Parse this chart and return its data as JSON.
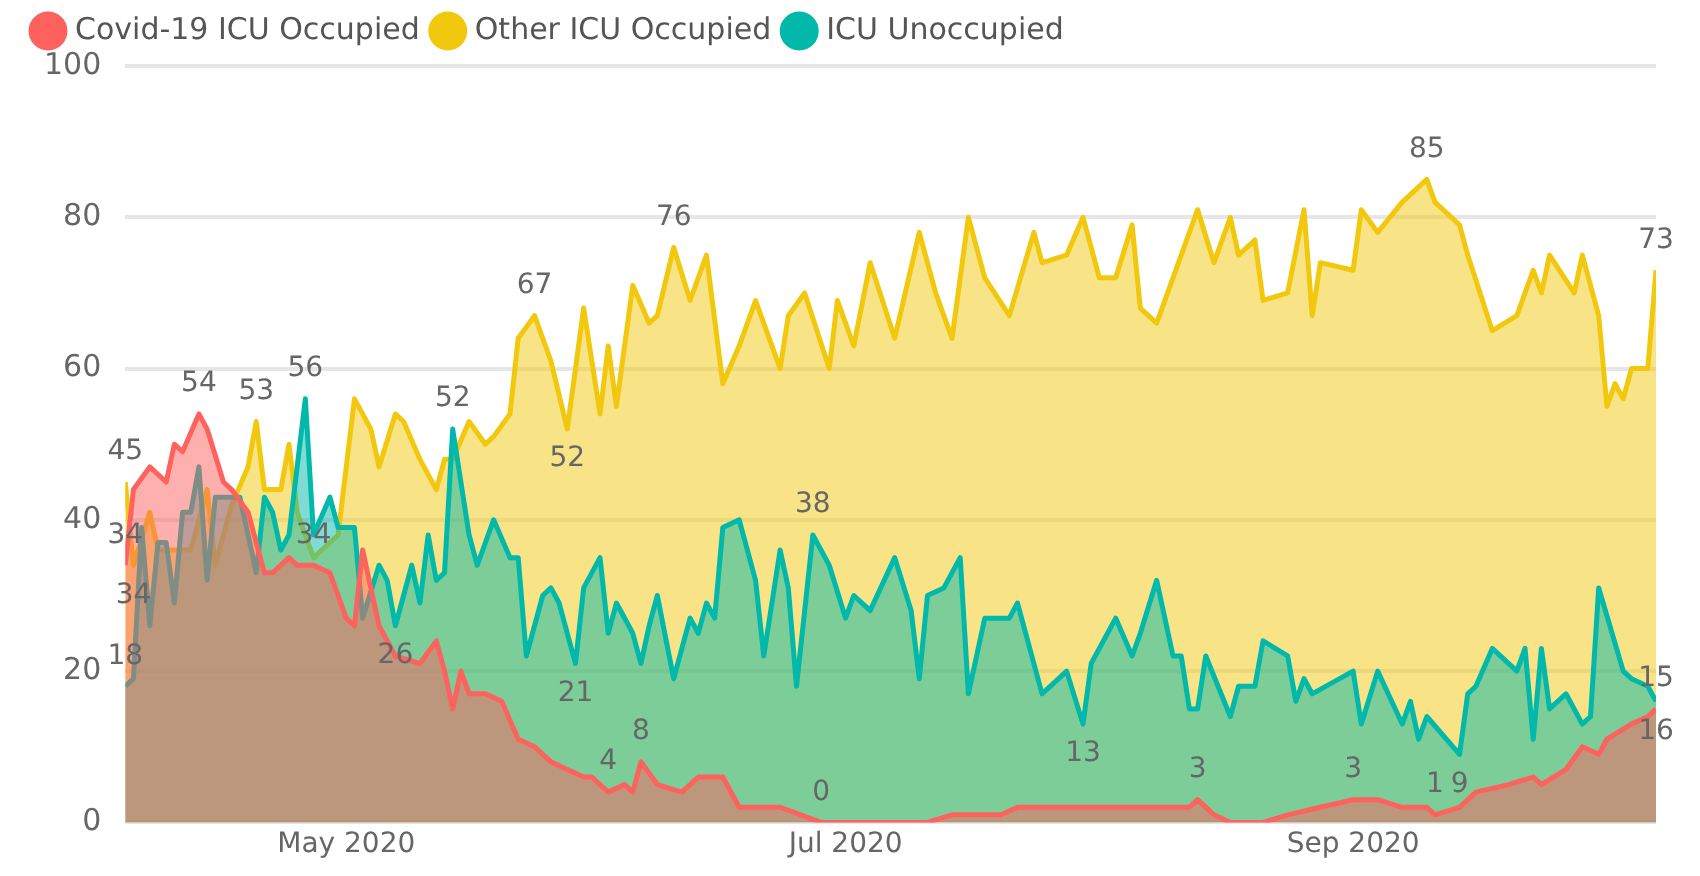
{
  "chart_data": {
    "type": "area",
    "legend": "top left",
    "grid": "y",
    "marker": "none",
    "line_style": "solid",
    "xlim": [
      "2020-04-04",
      "2020-10-08"
    ],
    "xticks": [
      {
        "value": "2020-05-01",
        "label": "May 2020"
      },
      {
        "value": "2020-07-01",
        "label": "Jul 2020"
      },
      {
        "value": "2020-09-01",
        "label": "Sep 2020"
      }
    ],
    "ylim": [
      0,
      100
    ],
    "yticks": [
      0,
      20,
      40,
      60,
      80,
      100
    ],
    "series": [
      {
        "name": "Covid-19 ICU Occupied",
        "color": "#fd625e",
        "x": [
          "2020-04-04",
          "2020-04-05",
          "2020-04-07",
          "2020-04-09",
          "2020-04-10",
          "2020-04-11",
          "2020-04-13",
          "2020-04-14",
          "2020-04-16",
          "2020-04-17",
          "2020-04-19",
          "2020-04-21",
          "2020-04-22",
          "2020-04-24",
          "2020-04-25",
          "2020-04-27",
          "2020-04-29",
          "2020-04-30",
          "2020-05-01",
          "2020-05-02",
          "2020-05-03",
          "2020-05-05",
          "2020-05-06",
          "2020-05-07",
          "2020-05-10",
          "2020-05-12",
          "2020-05-13",
          "2020-05-14",
          "2020-05-15",
          "2020-05-16",
          "2020-05-18",
          "2020-05-20",
          "2020-05-22",
          "2020-05-24",
          "2020-05-26",
          "2020-05-28",
          "2020-05-30",
          "2020-05-31",
          "2020-06-02",
          "2020-06-04",
          "2020-06-05",
          "2020-06-06",
          "2020-06-08",
          "2020-06-11",
          "2020-06-13",
          "2020-06-16",
          "2020-06-18",
          "2020-06-23",
          "2020-06-28",
          "2020-07-11",
          "2020-07-14",
          "2020-07-20",
          "2020-07-22",
          "2020-07-31",
          "2020-08-12",
          "2020-08-13",
          "2020-08-15",
          "2020-08-17",
          "2020-08-21",
          "2020-08-24",
          "2020-08-28",
          "2020-09-01",
          "2020-09-04",
          "2020-09-07",
          "2020-09-10",
          "2020-09-11",
          "2020-09-14",
          "2020-09-16",
          "2020-09-20",
          "2020-09-23",
          "2020-09-24",
          "2020-09-27",
          "2020-09-29",
          "2020-10-01",
          "2020-10-02",
          "2020-10-05",
          "2020-10-07",
          "2020-10-08"
        ],
        "values": [
          34,
          44,
          47,
          45,
          50,
          49,
          54,
          52,
          45,
          44,
          41,
          33,
          33,
          35,
          34,
          34,
          33,
          30,
          27,
          26,
          36,
          26,
          24,
          22,
          21,
          24,
          20,
          15,
          20,
          17,
          17,
          16,
          11,
          10,
          8,
          7,
          6,
          6,
          4,
          5,
          4,
          8,
          5,
          4,
          6,
          6,
          2,
          2,
          0,
          0,
          1,
          1,
          2,
          2,
          2,
          3,
          1,
          0,
          0,
          1,
          2,
          3,
          3,
          2,
          2,
          1,
          2,
          4,
          5,
          6,
          5,
          7,
          10,
          9,
          11,
          13,
          14,
          15
        ],
        "value_labels": [
          "34",
          null,
          null,
          null,
          null,
          null,
          "54",
          null,
          null,
          null,
          null,
          null,
          null,
          null,
          null,
          "34",
          null,
          null,
          null,
          null,
          null,
          null,
          null,
          null,
          null,
          null,
          null,
          null,
          null,
          null,
          null,
          null,
          null,
          null,
          null,
          null,
          null,
          null,
          "4",
          null,
          null,
          "8",
          null,
          null,
          null,
          null,
          null,
          null,
          "0",
          null,
          null,
          null,
          null,
          null,
          null,
          "3",
          null,
          null,
          null,
          null,
          null,
          "3",
          null,
          null,
          null,
          "1",
          null,
          null,
          null,
          null,
          null,
          null,
          null,
          null,
          null,
          null,
          null,
          "15"
        ]
      },
      {
        "name": "Other ICU Occupied",
        "color": "#f2c80f",
        "x": [
          "2020-04-04",
          "2020-04-05",
          "2020-04-07",
          "2020-04-08",
          "2020-04-10",
          "2020-04-12",
          "2020-04-14",
          "2020-04-15",
          "2020-04-17",
          "2020-04-19",
          "2020-04-20",
          "2020-04-21",
          "2020-04-23",
          "2020-04-24",
          "2020-04-25",
          "2020-04-27",
          "2020-04-30",
          "2020-05-02",
          "2020-05-04",
          "2020-05-05",
          "2020-05-07",
          "2020-05-08",
          "2020-05-10",
          "2020-05-12",
          "2020-05-13",
          "2020-05-14",
          "2020-05-16",
          "2020-05-18",
          "2020-05-19",
          "2020-05-21",
          "2020-05-22",
          "2020-05-24",
          "2020-05-26",
          "2020-05-28",
          "2020-05-30",
          "2020-06-01",
          "2020-06-02",
          "2020-06-03",
          "2020-06-05",
          "2020-06-07",
          "2020-06-08",
          "2020-06-10",
          "2020-06-12",
          "2020-06-14",
          "2020-06-16",
          "2020-06-18",
          "2020-06-20",
          "2020-06-23",
          "2020-06-24",
          "2020-06-26",
          "2020-06-29",
          "2020-06-30",
          "2020-07-02",
          "2020-07-04",
          "2020-07-07",
          "2020-07-10",
          "2020-07-12",
          "2020-07-14",
          "2020-07-16",
          "2020-07-18",
          "2020-07-21",
          "2020-07-24",
          "2020-07-25",
          "2020-07-28",
          "2020-07-30",
          "2020-08-01",
          "2020-08-03",
          "2020-08-05",
          "2020-08-06",
          "2020-08-08",
          "2020-08-10",
          "2020-08-13",
          "2020-08-15",
          "2020-08-17",
          "2020-08-18",
          "2020-08-20",
          "2020-08-21",
          "2020-08-24",
          "2020-08-26",
          "2020-08-27",
          "2020-08-28",
          "2020-09-01",
          "2020-09-02",
          "2020-09-04",
          "2020-09-07",
          "2020-09-10",
          "2020-09-11",
          "2020-09-14",
          "2020-09-15",
          "2020-09-18",
          "2020-09-21",
          "2020-09-23",
          "2020-09-24",
          "2020-09-25",
          "2020-09-28",
          "2020-09-29",
          "2020-10-01",
          "2020-10-02",
          "2020-10-03",
          "2020-10-04",
          "2020-10-05",
          "2020-10-07",
          "2020-10-08"
        ],
        "values": [
          45,
          34,
          41,
          36,
          36,
          36,
          44,
          34,
          42,
          47,
          53,
          44,
          44,
          50,
          41,
          35,
          38,
          56,
          52,
          47,
          54,
          53,
          48,
          44,
          48,
          48,
          53,
          50,
          51,
          54,
          64,
          67,
          61,
          52,
          68,
          54,
          63,
          55,
          71,
          66,
          67,
          76,
          69,
          75,
          58,
          63,
          69,
          60,
          67,
          70,
          60,
          69,
          63,
          74,
          64,
          78,
          70,
          64,
          80,
          72,
          67,
          78,
          74,
          75,
          80,
          72,
          72,
          79,
          68,
          66,
          72,
          81,
          74,
          80,
          75,
          77,
          69,
          70,
          81,
          67,
          74,
          73,
          81,
          78,
          82,
          85,
          82,
          79,
          75,
          65,
          67,
          73,
          70,
          75,
          70,
          75,
          67,
          55,
          58,
          56,
          60,
          60,
          73
        ],
        "value_labels": [
          "45",
          "34",
          null,
          null,
          null,
          null,
          null,
          null,
          null,
          null,
          "53",
          null,
          null,
          null,
          null,
          null,
          null,
          null,
          null,
          null,
          null,
          null,
          null,
          null,
          null,
          null,
          null,
          null,
          null,
          null,
          null,
          "67",
          null,
          "52",
          null,
          null,
          null,
          null,
          null,
          null,
          null,
          "76",
          null,
          null,
          null,
          null,
          null,
          null,
          null,
          null,
          null,
          null,
          null,
          null,
          null,
          null,
          null,
          null,
          null,
          null,
          null,
          null,
          null,
          null,
          null,
          null,
          null,
          null,
          null,
          null,
          null,
          null,
          null,
          null,
          null,
          null,
          null,
          null,
          null,
          null,
          null,
          null,
          null,
          null,
          null,
          "85",
          null,
          null,
          null,
          null,
          null,
          null,
          null,
          null,
          null,
          null,
          null,
          null,
          null,
          null,
          null,
          null,
          "73"
        ]
      },
      {
        "name": "ICU Unoccupied",
        "color": "#01b8aa",
        "x": [
          "2020-04-04",
          "2020-04-05",
          "2020-04-06",
          "2020-04-07",
          "2020-04-08",
          "2020-04-09",
          "2020-04-10",
          "2020-04-11",
          "2020-04-12",
          "2020-04-13",
          "2020-04-14",
          "2020-04-15",
          "2020-04-16",
          "2020-04-18",
          "2020-04-20",
          "2020-04-21",
          "2020-04-22",
          "2020-04-23",
          "2020-04-24",
          "2020-04-26",
          "2020-04-27",
          "2020-04-29",
          "2020-04-30",
          "2020-05-02",
          "2020-05-03",
          "2020-05-05",
          "2020-05-06",
          "2020-05-07",
          "2020-05-09",
          "2020-05-10",
          "2020-05-11",
          "2020-05-12",
          "2020-05-13",
          "2020-05-14",
          "2020-05-16",
          "2020-05-17",
          "2020-05-19",
          "2020-05-21",
          "2020-05-22",
          "2020-05-23",
          "2020-05-25",
          "2020-05-26",
          "2020-05-27",
          "2020-05-29",
          "2020-05-30",
          "2020-06-01",
          "2020-06-02",
          "2020-06-03",
          "2020-06-05",
          "2020-06-06",
          "2020-06-07",
          "2020-06-08",
          "2020-06-10",
          "2020-06-12",
          "2020-06-13",
          "2020-06-14",
          "2020-06-15",
          "2020-06-16",
          "2020-06-18",
          "2020-06-20",
          "2020-06-21",
          "2020-06-23",
          "2020-06-24",
          "2020-06-25",
          "2020-06-27",
          "2020-06-29",
          "2020-07-01",
          "2020-07-02",
          "2020-07-04",
          "2020-07-07",
          "2020-07-09",
          "2020-07-10",
          "2020-07-11",
          "2020-07-13",
          "2020-07-15",
          "2020-07-16",
          "2020-07-18",
          "2020-07-21",
          "2020-07-22",
          "2020-07-25",
          "2020-07-28",
          "2020-07-30",
          "2020-07-31",
          "2020-08-03",
          "2020-08-05",
          "2020-08-06",
          "2020-08-08",
          "2020-08-10",
          "2020-08-11",
          "2020-08-12",
          "2020-08-13",
          "2020-08-14",
          "2020-08-17",
          "2020-08-18",
          "2020-08-20",
          "2020-08-21",
          "2020-08-24",
          "2020-08-25",
          "2020-08-26",
          "2020-08-27",
          "2020-09-01",
          "2020-09-02",
          "2020-09-04",
          "2020-09-07",
          "2020-09-08",
          "2020-09-09",
          "2020-09-10",
          "2020-09-14",
          "2020-09-15",
          "2020-09-16",
          "2020-09-18",
          "2020-09-21",
          "2020-09-22",
          "2020-09-23",
          "2020-09-24",
          "2020-09-25",
          "2020-09-27",
          "2020-09-29",
          "2020-09-30",
          "2020-10-01",
          "2020-10-04",
          "2020-10-05",
          "2020-10-07",
          "2020-10-08"
        ],
        "values": [
          18,
          19,
          39,
          26,
          37,
          37,
          29,
          41,
          41,
          47,
          32,
          43,
          43,
          43,
          33,
          43,
          41,
          36,
          38,
          56,
          38,
          43,
          39,
          39,
          27,
          34,
          32,
          26,
          34,
          29,
          38,
          32,
          33,
          52,
          38,
          34,
          40,
          35,
          35,
          22,
          30,
          31,
          29,
          21,
          31,
          35,
          25,
          29,
          25,
          21,
          26,
          30,
          19,
          27,
          25,
          29,
          27,
          39,
          40,
          32,
          22,
          36,
          31,
          18,
          38,
          34,
          27,
          30,
          28,
          35,
          28,
          19,
          30,
          31,
          35,
          17,
          27,
          27,
          29,
          17,
          20,
          13,
          21,
          27,
          22,
          25,
          32,
          22,
          22,
          15,
          15,
          22,
          14,
          18,
          18,
          24,
          22,
          16,
          19,
          17,
          20,
          13,
          20,
          13,
          16,
          11,
          14,
          9,
          17,
          18,
          23,
          20,
          23,
          11,
          23,
          15,
          17,
          13,
          14,
          31,
          20,
          19,
          18,
          16
        ],
        "value_labels": [
          "18",
          null,
          null,
          null,
          null,
          null,
          null,
          null,
          null,
          null,
          null,
          null,
          null,
          null,
          null,
          null,
          null,
          null,
          null,
          "56",
          null,
          null,
          null,
          null,
          null,
          null,
          null,
          "26",
          null,
          null,
          null,
          null,
          null,
          "52",
          null,
          null,
          null,
          null,
          null,
          null,
          null,
          null,
          null,
          "21",
          null,
          null,
          null,
          null,
          null,
          null,
          null,
          null,
          null,
          null,
          null,
          null,
          null,
          null,
          null,
          null,
          null,
          null,
          null,
          null,
          "38",
          null,
          null,
          null,
          null,
          null,
          null,
          null,
          null,
          null,
          null,
          null,
          null,
          null,
          null,
          null,
          null,
          "13",
          null,
          null,
          null,
          null,
          null,
          null,
          null,
          null,
          null,
          null,
          null,
          null,
          null,
          null,
          null,
          null,
          null,
          null,
          null,
          null,
          null,
          null,
          null,
          null,
          null,
          "9",
          null,
          null,
          null,
          null,
          null,
          null,
          null,
          null,
          null,
          null,
          null,
          null,
          null,
          null,
          null,
          "16"
        ]
      }
    ]
  }
}
